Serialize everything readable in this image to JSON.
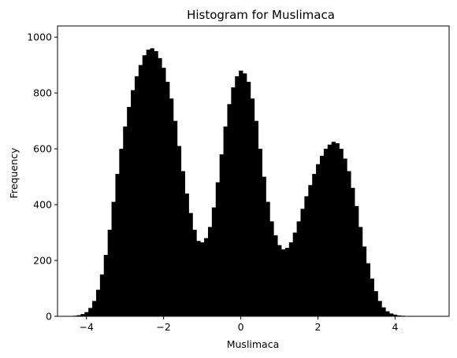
{
  "chart_data": {
    "type": "bar",
    "title": "Histogram for Muslimaca",
    "xlabel": "Muslimaca",
    "ylabel": "Frequency",
    "xlim": [
      -4.75,
      5.4
    ],
    "ylim": [
      0,
      1040
    ],
    "xticks": [
      -4,
      -2,
      0,
      2,
      4
    ],
    "yticks": [
      0,
      200,
      400,
      600,
      800,
      1000
    ],
    "grid": false,
    "bar_color": "#000000",
    "bin_width": 0.1,
    "x": [
      -4.4,
      -4.3,
      -4.2,
      -4.1,
      -4.0,
      -3.9,
      -3.8,
      -3.7,
      -3.6,
      -3.5,
      -3.4,
      -3.3,
      -3.2,
      -3.1,
      -3.0,
      -2.9,
      -2.8,
      -2.7,
      -2.6,
      -2.5,
      -2.4,
      -2.3,
      -2.2,
      -2.1,
      -2.0,
      -1.9,
      -1.8,
      -1.7,
      -1.6,
      -1.5,
      -1.4,
      -1.3,
      -1.2,
      -1.1,
      -1.0,
      -0.9,
      -0.8,
      -0.7,
      -0.6,
      -0.5,
      -0.4,
      -0.3,
      -0.2,
      -0.1,
      0.0,
      0.1,
      0.2,
      0.3,
      0.4,
      0.5,
      0.6,
      0.7,
      0.8,
      0.9,
      1.0,
      1.1,
      1.2,
      1.3,
      1.4,
      1.5,
      1.6,
      1.7,
      1.8,
      1.9,
      2.0,
      2.1,
      2.2,
      2.3,
      2.4,
      2.5,
      2.6,
      2.7,
      2.8,
      2.9,
      3.0,
      3.1,
      3.2,
      3.3,
      3.4,
      3.5,
      3.6,
      3.7,
      3.8,
      3.9,
      4.0,
      4.1,
      4.2,
      4.3,
      4.4,
      4.5,
      4.6,
      4.7,
      4.8,
      4.9
    ],
    "values": [
      1,
      2,
      4,
      8,
      15,
      30,
      55,
      95,
      150,
      220,
      310,
      410,
      510,
      600,
      680,
      750,
      810,
      860,
      900,
      935,
      955,
      960,
      950,
      925,
      890,
      840,
      780,
      700,
      610,
      520,
      440,
      370,
      310,
      270,
      265,
      280,
      320,
      390,
      480,
      580,
      680,
      760,
      820,
      860,
      880,
      870,
      840,
      780,
      700,
      600,
      500,
      410,
      340,
      290,
      255,
      240,
      245,
      265,
      300,
      340,
      385,
      430,
      470,
      510,
      545,
      575,
      600,
      615,
      625,
      620,
      600,
      565,
      520,
      460,
      395,
      320,
      250,
      190,
      135,
      90,
      55,
      32,
      18,
      10,
      6,
      3,
      2,
      1,
      1,
      0,
      0,
      0,
      0,
      0
    ]
  }
}
